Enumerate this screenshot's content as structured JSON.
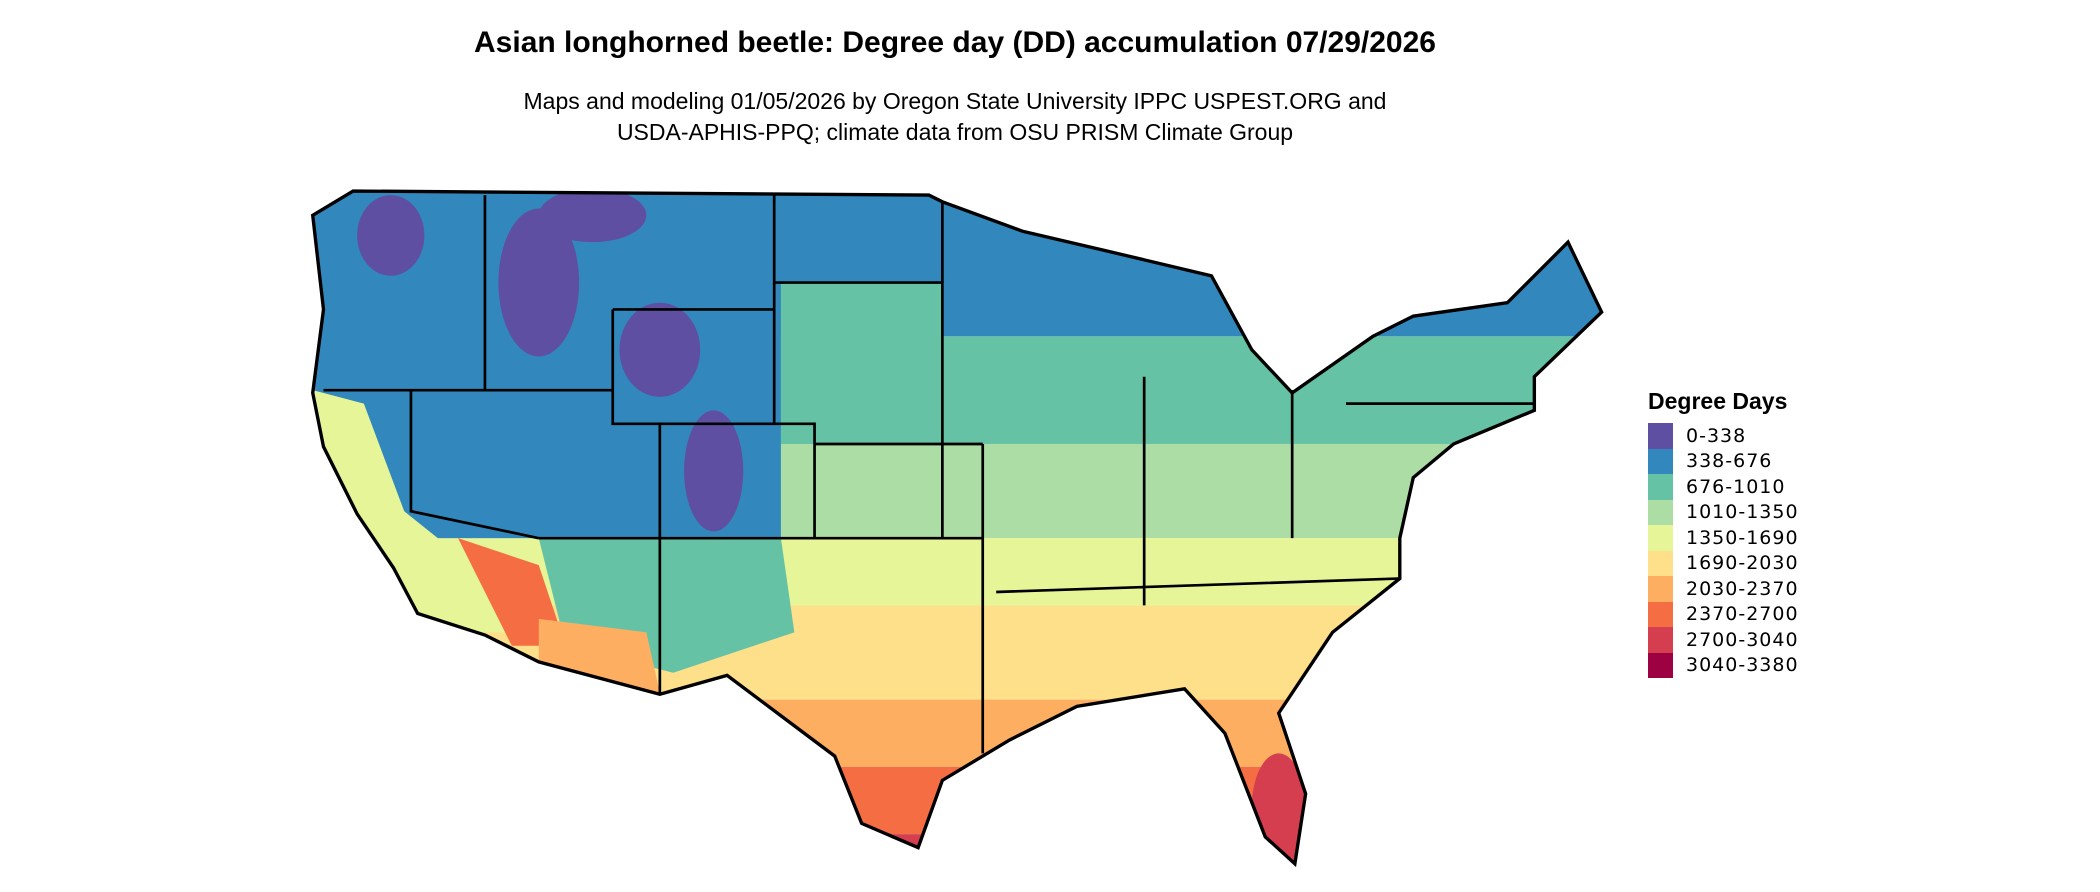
{
  "title": "Asian longhorned beetle: Degree day (DD) accumulation 07/29/2026",
  "subtitle_line1": "Maps and modeling 01/05/2026 by Oregon State University IPPC USPEST.ORG and",
  "subtitle_line2": "USDA-APHIS-PPQ; climate data from OSU PRISM Climate Group",
  "legend": {
    "title": "Degree Days",
    "items": [
      {
        "label": "0-338",
        "color": "#5e4fa2"
      },
      {
        "label": "338-676",
        "color": "#3288bd"
      },
      {
        "label": "676-1010",
        "color": "#66c2a5"
      },
      {
        "label": "1010-1350",
        "color": "#abdda4"
      },
      {
        "label": "1350-1690",
        "color": "#e6f598"
      },
      {
        "label": "1690-2030",
        "color": "#fee08b"
      },
      {
        "label": "2030-2370",
        "color": "#fdae61"
      },
      {
        "label": "2370-2700",
        "color": "#f46d43"
      },
      {
        "label": "2700-3040",
        "color": "#d53e4f"
      },
      {
        "label": "3040-3380",
        "color": "#9e0142"
      }
    ]
  }
}
